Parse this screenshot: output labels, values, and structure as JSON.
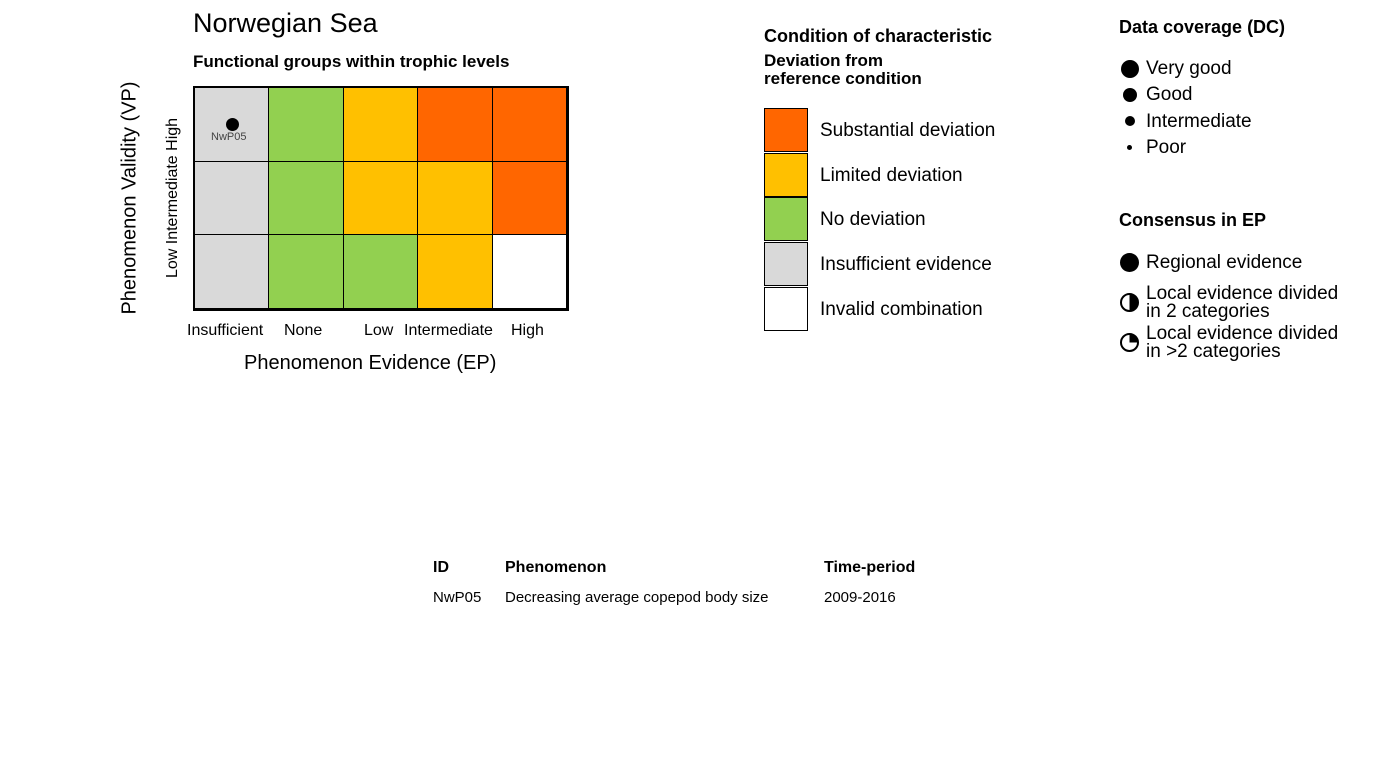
{
  "chart_data": {
    "type": "heatmap",
    "title": "Norwegian Sea",
    "subtitle": "Functional groups within trophic levels",
    "xlabel": "Phenomenon Evidence (EP)",
    "ylabel": "Phenomenon Validity (VP)",
    "x_ticks": [
      "Insufficient",
      "None",
      "Low",
      "Intermediate",
      "High"
    ],
    "y_ticks": [
      "Low",
      "Intermediate",
      "High"
    ],
    "matrix_rows_top_to_bottom": [
      [
        "Insufficient evidence",
        "No deviation",
        "Limited deviation",
        "Substantial deviation",
        "Substantial deviation"
      ],
      [
        "Insufficient evidence",
        "No deviation",
        "Limited deviation",
        "Limited deviation",
        "Substantial deviation"
      ],
      [
        "Insufficient evidence",
        "No deviation",
        "No deviation",
        "Limited deviation",
        "Invalid combination"
      ]
    ],
    "points": [
      {
        "id": "NwP05",
        "ep": "Insufficient",
        "vp": "High",
        "data_coverage": "Good",
        "consensus": "Regional evidence"
      }
    ]
  },
  "colors": {
    "Substantial deviation": "#FF6600",
    "Limited deviation": "#FFC000",
    "No deviation": "#92D050",
    "Insufficient evidence": "#D9D9D9",
    "Invalid combination": "#FFFFFF"
  },
  "legend_condition": {
    "title": "Condition of characteristic",
    "subtitle1": "Deviation from",
    "subtitle2": "reference condition",
    "items": [
      "Substantial deviation",
      "Limited deviation",
      "No deviation",
      "Insufficient evidence",
      "Invalid combination"
    ]
  },
  "legend_dc": {
    "title": "Data coverage (DC)",
    "items": [
      "Very good",
      "Good",
      "Intermediate",
      "Poor"
    ]
  },
  "legend_consensus": {
    "title": "Consensus in EP",
    "items": [
      {
        "l1": "Regional evidence"
      },
      {
        "l1": "Local evidence divided",
        "l2": "in 2 categories"
      },
      {
        "l1": "Local evidence divided",
        "l2": "in >2 categories"
      }
    ]
  },
  "table": {
    "headers": [
      "ID",
      "Phenomenon",
      "Time-period"
    ],
    "rows": [
      [
        "NwP05",
        "Decreasing average copepod body size",
        "2009-2016"
      ]
    ]
  }
}
